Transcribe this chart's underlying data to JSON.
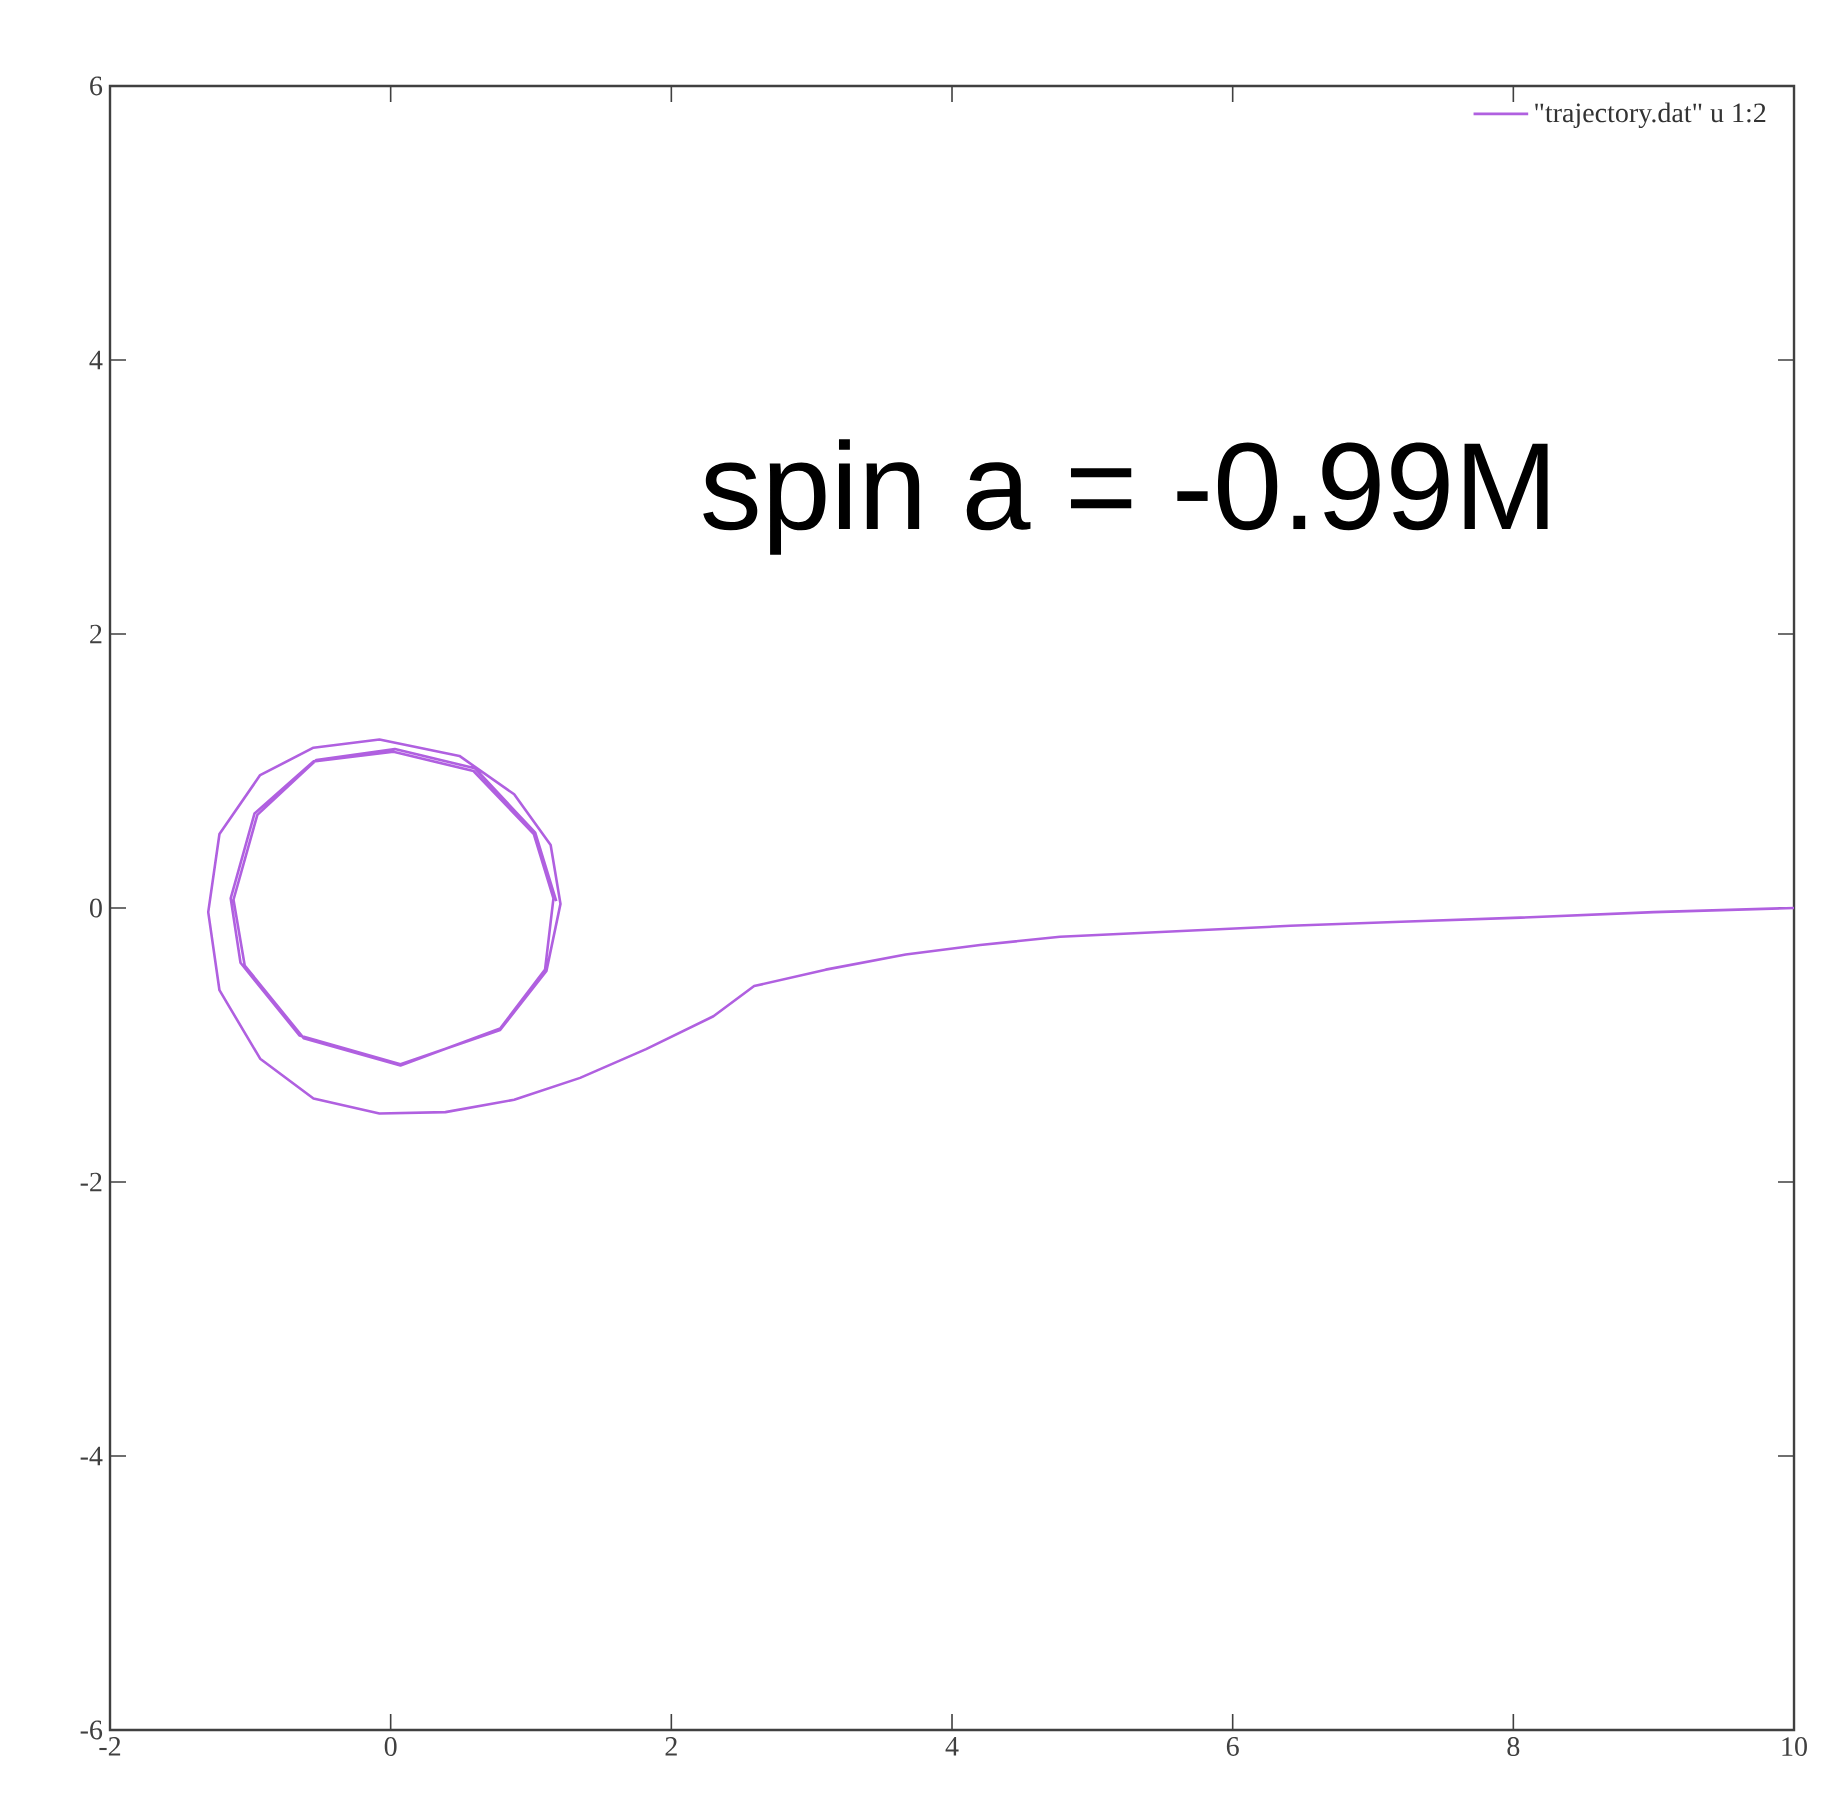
{
  "chart_data": {
    "type": "line",
    "xlim": [
      -2,
      10
    ],
    "ylim": [
      -6,
      6
    ],
    "xticks": [
      -2,
      0,
      2,
      4,
      6,
      8,
      10
    ],
    "yticks": [
      -6,
      -4,
      -2,
      0,
      2,
      4,
      6
    ],
    "grid": false,
    "legend": "top right",
    "marker": "none",
    "line_style": "solid",
    "annotations": [
      "spin a = -0.99M"
    ],
    "series": [
      {
        "name": "\"trajectory.dat\" u 1:2",
        "color": "#b060e0",
        "x": [
          10,
          9,
          8.05,
          7.2,
          6.41,
          5.6,
          4.77,
          4.2,
          3.67,
          3.1,
          2.59,
          2.3,
          1.82,
          1.35,
          0.88,
          0.39,
          -0.08,
          -0.55,
          -0.93,
          -1.22,
          -1.3,
          -1.22,
          -0.93,
          -0.55,
          -0.08,
          0.49,
          0.88,
          1.14,
          1.21,
          1.11,
          0.78,
          0.07,
          -0.65,
          -1.07,
          -1.14,
          -0.97,
          -0.55,
          0.02,
          0.59,
          1.02,
          1.16,
          1.1,
          0.78,
          0.07,
          -0.62,
          -1.04,
          -1.12,
          -0.95,
          -0.53,
          0.03,
          0.6,
          1.03,
          1.18
        ],
        "values": [
          0,
          -0.03,
          -0.07,
          -0.1,
          -0.13,
          -0.17,
          -0.21,
          -0.27,
          -0.34,
          -0.45,
          -0.57,
          -0.79,
          -1.03,
          -1.24,
          -1.4,
          -1.49,
          -1.5,
          -1.39,
          -1.1,
          -0.6,
          -0.03,
          0.54,
          0.97,
          1.17,
          1.23,
          1.11,
          0.83,
          0.46,
          0.03,
          -0.46,
          -0.89,
          -1.14,
          -0.93,
          -0.4,
          0.07,
          0.69,
          1.07,
          1.14,
          1.0,
          0.54,
          0.07,
          -0.45,
          -0.88,
          -1.15,
          -0.95,
          -0.42,
          0.06,
          0.68,
          1.08,
          1.16,
          1.02,
          0.55,
          0.05
        ]
      }
    ]
  }
}
